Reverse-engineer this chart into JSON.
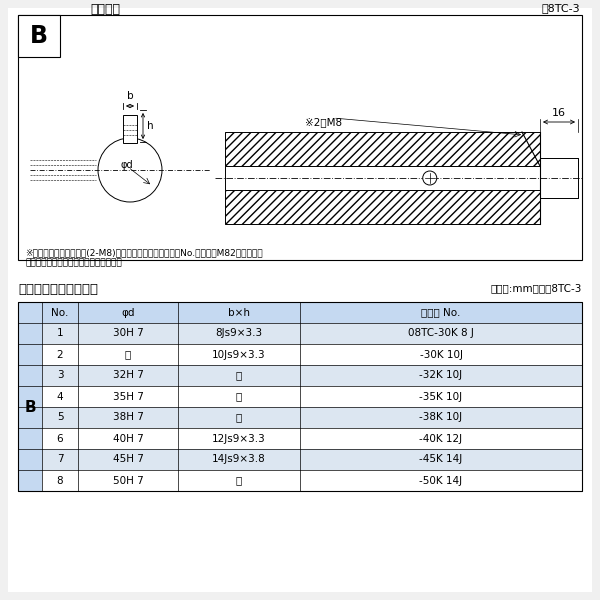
{
  "bg_color": "#f0f0f0",
  "inner_bg": "#ffffff",
  "title_diagram": "軸穴形状",
  "fig_ref": "図8TC-3",
  "table_title": "軸穴形状コード一覧表",
  "table_unit": "（単位:mm）　表8TC-3",
  "note_line1": "※セットボルト用タップ(2-M8)が必要な場合は右記コードNo.の末尾にM82を付ける。",
  "note_line2": "（セットボルトは付属されています。）",
  "label_B_diagram": "B",
  "label_b": "b",
  "label_h": "h",
  "label_phid": "φd",
  "label_2M8": "※2－M8",
  "label_16": "16",
  "table_headers": [
    "No.",
    "φd",
    "b×h",
    "コード No."
  ],
  "table_B_label": "B",
  "table_rows": [
    [
      "1",
      "30H 7",
      "8Js9×3.3",
      "08TC-30K 8 J"
    ],
    [
      "2",
      "〃",
      "10Js9×3.3",
      "-30K 10J"
    ],
    [
      "3",
      "32H 7",
      "〃",
      "-32K 10J"
    ],
    [
      "4",
      "35H 7",
      "〃",
      "-35K 10J"
    ],
    [
      "5",
      "38H 7",
      "〃",
      "-38K 10J"
    ],
    [
      "6",
      "40H 7",
      "12Js9×3.3",
      "-40K 12J"
    ],
    [
      "7",
      "45H 7",
      "14Js9×3.8",
      "-45K 14J"
    ],
    [
      "8",
      "50H 7",
      "〃",
      "-50K 14J"
    ]
  ],
  "header_bg": "#c5d9f1",
  "row_bg_odd": "#dce6f1",
  "row_bg_even": "#ffffff",
  "left_col_bg": "#c5d9f1"
}
